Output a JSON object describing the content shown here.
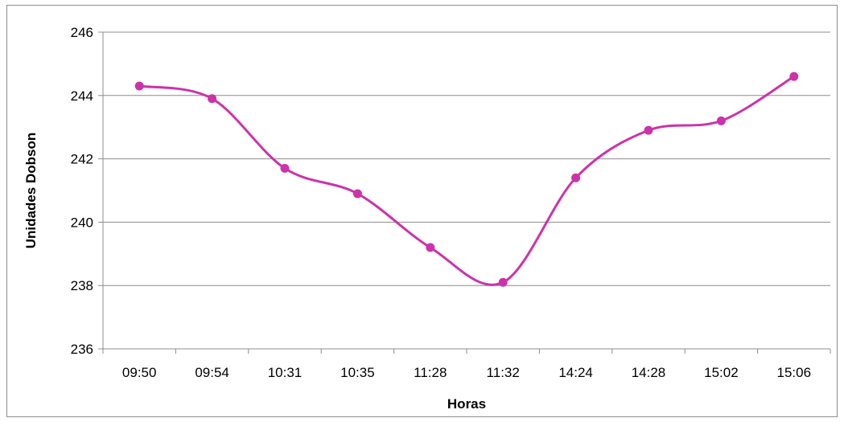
{
  "chart_data": {
    "type": "line",
    "title": "",
    "xlabel": "Horas",
    "ylabel": "Unidades Dobson",
    "categories": [
      "09:50",
      "09:54",
      "10:31",
      "10:35",
      "11:28",
      "11:32",
      "14:24",
      "14:28",
      "15:02",
      "15:06"
    ],
    "series": [
      {
        "values": [
          244.3,
          243.9,
          241.7,
          240.9,
          239.2,
          238.1,
          241.4,
          242.9,
          243.2,
          244.6
        ]
      }
    ],
    "ylim": [
      236,
      246
    ],
    "yticks": [
      "236",
      "238",
      "240",
      "242",
      "244",
      "246"
    ],
    "grid": true,
    "smooth": true,
    "legend": "none",
    "colors": {
      "series": "#cc33aa",
      "grid": "#8c8c8c",
      "axis": "#8c8c8c"
    }
  }
}
